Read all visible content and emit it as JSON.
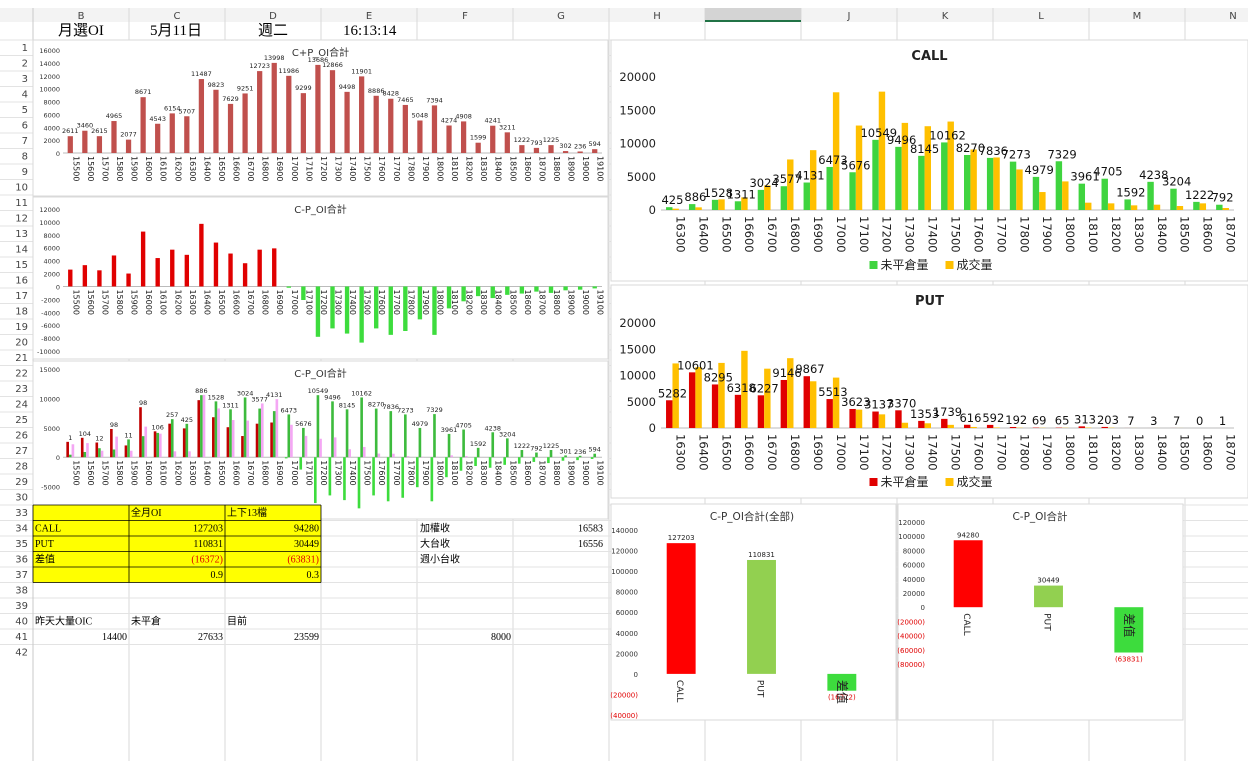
{
  "column_headers": [
    "B",
    "C",
    "D",
    "E",
    "F",
    "G",
    "H",
    "I",
    "J",
    "K",
    "L",
    "M",
    "N"
  ],
  "row_numbers": [
    "1",
    "2",
    "3",
    "4",
    "5",
    "6",
    "7",
    "8",
    "9",
    "10",
    "11",
    "12",
    "13",
    "14",
    "15",
    "16",
    "17",
    "18",
    "19",
    "20",
    "21",
    "22",
    "23",
    "24",
    "25",
    "26",
    "27",
    "28",
    "29",
    "30",
    "33",
    "34",
    "35",
    "36",
    "37",
    "38",
    "39",
    "40",
    "41",
    "42"
  ],
  "header": {
    "title": "月選OI",
    "date": "5月11日",
    "weekday": "週二",
    "time": "16:13:14"
  },
  "table": {
    "col_headers": [
      "全月OI",
      "上下13檔"
    ],
    "rows": [
      {
        "label": "CALL",
        "full": "127203",
        "range": "94280"
      },
      {
        "label": "PUT",
        "full": "110831",
        "range": "30449"
      },
      {
        "label": "差值",
        "full": "(16372)",
        "range": "(63831)"
      },
      {
        "label": "",
        "full": "0.9",
        "range": "0.3"
      }
    ]
  },
  "right_info": [
    {
      "label": "加權收",
      "value": "16583"
    },
    {
      "label": "大台收",
      "value": "16556"
    },
    {
      "label": "週小台收",
      "value": ""
    }
  ],
  "bottom_table": {
    "labels": [
      "昨天大量OIC",
      "未平倉",
      "目前"
    ],
    "values": [
      "14400",
      "27633",
      "23599"
    ],
    "extra": "8000"
  },
  "chart_data": [
    {
      "type": "bar",
      "title": "C+P_OI合計",
      "categories": [
        "15500",
        "15600",
        "15700",
        "15800",
        "15900",
        "16000",
        "16100",
        "16200",
        "16300",
        "16400",
        "16500",
        "16600",
        "16700",
        "16800",
        "16900",
        "17000",
        "17100",
        "17200",
        "17300",
        "17400",
        "17500",
        "17600",
        "17700",
        "17800",
        "17900",
        "18000",
        "18100",
        "18200",
        "18300",
        "18400",
        "18500",
        "18600",
        "18700",
        "18800",
        "18900",
        "19000",
        "19100"
      ],
      "values": [
        2611,
        3460,
        2615,
        4965,
        2077,
        8671,
        4543,
        6154,
        5707,
        11487,
        9823,
        7629,
        9251,
        12723,
        13998,
        11986,
        9299,
        13686,
        12866,
        9498,
        11901,
        8886,
        8428,
        7465,
        5048,
        7394,
        4274,
        4908,
        1599,
        4241,
        3211,
        1222,
        793,
        1225,
        302,
        236,
        594
      ],
      "labels": [
        "2611",
        "3460",
        "2615",
        "4965",
        "2077",
        "8671",
        "4543",
        "6154",
        "5707",
        "11487",
        "9823",
        "7629",
        "9251",
        "12723",
        "13998",
        "11986",
        "9299",
        "13686",
        "12866",
        "9498",
        "11901",
        "8886",
        "8428",
        "7465",
        "5048",
        "7394",
        "4274",
        "4908",
        "1599",
        "4241",
        "3211",
        "1222",
        "793",
        "1225",
        "302",
        "236",
        "594"
      ],
      "ylim": [
        0,
        16000
      ],
      "yticks": [
        "16000",
        "14000",
        "12000",
        "10000",
        "8000",
        "6000",
        "4000",
        "2000",
        "0"
      ],
      "ytick_values": [
        16000,
        14000,
        12000,
        10000,
        8000,
        6000,
        4000,
        2000,
        0
      ],
      "color": "#c0504d"
    },
    {
      "type": "bar",
      "title": "C-P_OI合計",
      "categories": [
        "15500",
        "15600",
        "15700",
        "15800",
        "15900",
        "16000",
        "16100",
        "16200",
        "16300",
        "16400",
        "16500",
        "16600",
        "16700",
        "16800",
        "16900",
        "17000",
        "17100",
        "17200",
        "17300",
        "17400",
        "17500",
        "17600",
        "17700",
        "17800",
        "17900",
        "18000",
        "18100",
        "18200",
        "18300",
        "18400",
        "18500",
        "18600",
        "18700",
        "18800",
        "18900",
        "19000",
        "19100"
      ],
      "values": [
        2611,
        3300,
        2500,
        4800,
        2000,
        8500,
        4400,
        5700,
        4900,
        9700,
        6800,
        5100,
        3600,
        5700,
        5900,
        -200,
        -2100,
        -7800,
        -6500,
        -7300,
        -8700,
        -6500,
        -7500,
        -6900,
        -5100,
        -7500,
        -3400,
        -2300,
        -1500,
        -1800,
        -1300,
        -1100,
        -800,
        -1000,
        -600,
        -500,
        -300
      ],
      "ylim": [
        -10000,
        12000
      ],
      "yticks": [
        "12000",
        "10000",
        "8000",
        "6000",
        "4000",
        "2000",
        "0",
        "-2000",
        "-4000",
        "-6000",
        "-8000",
        "-10000"
      ],
      "ytick_values": [
        12000,
        10000,
        8000,
        6000,
        4000,
        2000,
        0,
        -2000,
        -4000,
        -6000,
        -8000,
        -10000
      ],
      "pos_color": "#e00000",
      "neg_color": "#3ddc3d"
    },
    {
      "type": "bar",
      "title": "C-P_OI合計",
      "categories": [
        "15500",
        "15600",
        "15700",
        "15800",
        "15900",
        "16000",
        "16100",
        "16200",
        "16300",
        "16400",
        "16500",
        "16600",
        "16700",
        "16800",
        "16900",
        "17000",
        "17100",
        "17200",
        "17300",
        "17400",
        "17500",
        "17600",
        "17700",
        "17800",
        "17900",
        "18000",
        "18100",
        "18200",
        "18300",
        "18400",
        "18500",
        "18600",
        "18700",
        "18800",
        "18900",
        "19000",
        "19100"
      ],
      "series": [
        {
          "name": "C-P",
          "values": [
            2611,
            3300,
            2500,
            4800,
            2000,
            8500,
            4400,
            5700,
            4900,
            9700,
            6800,
            5100,
            3600,
            5700,
            5900,
            -200,
            -2100,
            -7800,
            -6500,
            -7300,
            -8700,
            -6500,
            -7500,
            -6900,
            -5100,
            -7500,
            -3400,
            -2300,
            -1500,
            -1800,
            -1300,
            -1100,
            -800,
            -1000,
            -600,
            -500,
            -300
          ],
          "pos_color": "#c00000",
          "neg_color": "#3ddc3d"
        },
        {
          "name": "Call",
          "values": [
            425,
            886,
            1528,
            1311,
            3024,
            3577,
            4131,
            6473,
            5676,
            10549,
            9496,
            8145,
            10162,
            8270,
            7836,
            7273,
            4979,
            10549,
            9496,
            8145,
            10162,
            8270,
            7836,
            7273,
            4979,
            7329,
            3961,
            4705,
            1592,
            4238,
            3204,
            1222,
            792,
            1225,
            301,
            236,
            594
          ],
          "color": "#3dbb3d"
        },
        {
          "name": "Put",
          "values": [
            2200,
            2400,
            1100,
            3500,
            1100,
            5200,
            4000,
            1000,
            1000,
            10601,
            8295,
            6318,
            6227,
            9146,
            9867,
            5513,
            3623,
            3137,
            3370,
            1353,
            1739,
            616,
            592,
            192,
            69,
            65,
            313,
            203,
            7,
            3,
            7,
            0,
            1,
            0,
            0,
            0,
            0
          ],
          "color": "#f4a7f4"
        }
      ],
      "labels": [
        "1",
        "104",
        "12",
        "98",
        "11",
        "98",
        "106",
        "257",
        "425",
        "886",
        "1528",
        "1311",
        "3024",
        "3577",
        "4131",
        "6473",
        "5676",
        "10549",
        "9496",
        "8145",
        "10162",
        "8270",
        "7836",
        "7273",
        "4979",
        "7329",
        "3961",
        "4705",
        "1592",
        "4238",
        "3204",
        "1222",
        "792",
        "1225",
        "301",
        "236",
        "594"
      ],
      "ylim": [
        -10000,
        15000
      ],
      "yticks": [
        "15000",
        "10000",
        "5000",
        "0",
        "-5000",
        "-10000"
      ],
      "ytick_values": [
        15000,
        10000,
        5000,
        0,
        -5000,
        -10000
      ]
    },
    {
      "type": "bar",
      "title": "CALL",
      "categories": [
        "16300",
        "16400",
        "16500",
        "16600",
        "16700",
        "16800",
        "16900",
        "17000",
        "17100",
        "17200",
        "17300",
        "17400",
        "17500",
        "17600",
        "17700",
        "17800",
        "17900",
        "18000",
        "18100",
        "18200",
        "18300",
        "18400",
        "18500",
        "18600",
        "18700"
      ],
      "series": [
        {
          "name": "未平倉量",
          "values": [
            425,
            886,
            1528,
            1311,
            3024,
            3577,
            4131,
            6473,
            5676,
            10549,
            9496,
            8145,
            10162,
            8270,
            7836,
            7273,
            4979,
            7329,
            3961,
            4705,
            1592,
            4238,
            3204,
            1222,
            792
          ],
          "color": "#3fd43f"
        },
        {
          "name": "成交量",
          "values": [
            200,
            400,
            1600,
            1900,
            3700,
            7600,
            9000,
            17700,
            12700,
            17800,
            13100,
            12600,
            13300,
            9100,
            7900,
            6100,
            2700,
            4300,
            1100,
            1000,
            700,
            800,
            600,
            1000,
            300
          ],
          "color": "#ffc000"
        }
      ],
      "labels": [
        "425",
        "886",
        "1528",
        "1311",
        "3024",
        "3577",
        "4131",
        "6473",
        "5676",
        "10549",
        "9496",
        "8145",
        "10162",
        "8270",
        "7836",
        "7273",
        "4979",
        "7329",
        "3961",
        "4705",
        "1592",
        "4238",
        "3204",
        "1222",
        "792"
      ],
      "ylim": [
        0,
        20000
      ],
      "yticks": [
        "20000",
        "15000",
        "10000",
        "5000",
        "0"
      ],
      "ytick_values": [
        20000,
        15000,
        10000,
        5000,
        0
      ]
    },
    {
      "type": "bar",
      "title": "PUT",
      "categories": [
        "16300",
        "16400",
        "16500",
        "16600",
        "16700",
        "16800",
        "16900",
        "17000",
        "17100",
        "17200",
        "17300",
        "17400",
        "17500",
        "17600",
        "17700",
        "17800",
        "17900",
        "18000",
        "18100",
        "18200",
        "18300",
        "18400",
        "18500",
        "18600",
        "18700"
      ],
      "series": [
        {
          "name": "未平倉量",
          "values": [
            5282,
            10601,
            8295,
            6318,
            6227,
            9146,
            9867,
            5513,
            3623,
            3137,
            3370,
            1353,
            1739,
            616,
            592,
            192,
            69,
            65,
            313,
            203,
            7,
            3,
            7,
            0,
            1
          ],
          "color": "#e00000"
        },
        {
          "name": "成交量",
          "values": [
            12300,
            11600,
            12400,
            14700,
            11300,
            13300,
            8900,
            9600,
            3500,
            2600,
            1000,
            900,
            600,
            200,
            100,
            60,
            40,
            40,
            80,
            60,
            10,
            10,
            10,
            0,
            0
          ],
          "color": "#ffc000"
        }
      ],
      "labels": [
        "5282",
        "10601",
        "8295",
        "6318",
        "6227",
        "9146",
        "9867",
        "5513",
        "3623",
        "3137",
        "3370",
        "1353",
        "1739",
        "616",
        "592",
        "192",
        "69",
        "65",
        "313",
        "203",
        "7",
        "3",
        "7",
        "0",
        "1"
      ],
      "ylim": [
        0,
        20000
      ],
      "yticks": [
        "20000",
        "15000",
        "10000",
        "5000",
        "0"
      ],
      "ytick_values": [
        20000,
        15000,
        10000,
        5000,
        0
      ]
    },
    {
      "type": "bar",
      "title": "C-P_OI合計(全部)",
      "categories": [
        "CALL",
        "PUT",
        "差值"
      ],
      "values": [
        127203,
        110831,
        -16372
      ],
      "labels": [
        "127203",
        "110831",
        "(16372)"
      ],
      "colors": [
        "#ff0000",
        "#92d050",
        "#3ddc3d"
      ],
      "ylim": [
        -40000,
        140000
      ],
      "yticks": [
        "140000",
        "120000",
        "100000",
        "80000",
        "60000",
        "40000",
        "20000",
        "0",
        "(20000)",
        "(40000)"
      ],
      "ytick_values": [
        140000,
        120000,
        100000,
        80000,
        60000,
        40000,
        20000,
        0,
        -20000,
        -40000
      ]
    },
    {
      "type": "bar",
      "title": "C-P_OI合計",
      "categories": [
        "CALL",
        "PUT",
        "差值"
      ],
      "values": [
        94280,
        30449,
        -63831
      ],
      "labels": [
        "94280",
        "30449",
        "(63831)"
      ],
      "colors": [
        "#ff0000",
        "#92d050",
        "#3ddc3d"
      ],
      "ylim": [
        -80000,
        120000
      ],
      "yticks": [
        "120000",
        "100000",
        "80000",
        "60000",
        "40000",
        "20000",
        "0",
        "(20000)",
        "(40000)",
        "(60000)",
        "(80000)"
      ],
      "ytick_values": [
        120000,
        100000,
        80000,
        60000,
        40000,
        20000,
        0,
        -20000,
        -40000,
        -60000,
        -80000
      ]
    }
  ]
}
